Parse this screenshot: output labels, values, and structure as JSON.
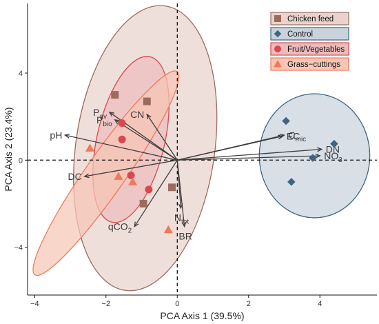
{
  "chart_data": {
    "type": "scatter",
    "title": "",
    "xlabel": "PCA Axis 1 (39.5%)",
    "ylabel": "PCA Axis 2 (23.4%)",
    "xlim": [
      -4.2,
      5.6
    ],
    "ylim": [
      -6.2,
      7.2
    ],
    "x_ticks": [
      -4,
      -2,
      0,
      2,
      4
    ],
    "y_ticks": [
      -4,
      0,
      4
    ],
    "grid": false,
    "legend_position": "top-right",
    "series": [
      {
        "name": "Chicken feed",
        "marker": "square",
        "color": "#9c6b5d",
        "ellipse_fill": "#e9d3cc",
        "points": [
          [
            -1.75,
            3.0
          ],
          [
            -0.85,
            2.7
          ],
          [
            -0.15,
            -1.25
          ],
          [
            -0.95,
            -2.0
          ]
        ]
      },
      {
        "name": "Control",
        "marker": "diamond",
        "color": "#3f6482",
        "ellipse_fill": "#c9d2dd",
        "points": [
          [
            3.05,
            1.8
          ],
          [
            4.4,
            0.75
          ],
          [
            3.8,
            0.1
          ],
          [
            3.2,
            -1.0
          ]
        ]
      },
      {
        "name": "Fruit/Vegetables",
        "marker": "circle",
        "color": "#d9474f",
        "ellipse_fill": "#ecbcbc",
        "points": [
          [
            -1.55,
            1.7
          ],
          [
            -1.55,
            0.95
          ],
          [
            -1.3,
            -0.7
          ],
          [
            -0.8,
            -1.35
          ]
        ]
      },
      {
        "name": "Grass−cuttings",
        "marker": "triangle",
        "color": "#ef7a58",
        "ellipse_fill": "#f7c6b6",
        "points": [
          [
            -2.45,
            0.55
          ],
          [
            -1.65,
            -0.75
          ],
          [
            -1.25,
            -1.0
          ],
          [
            -0.25,
            -3.2
          ]
        ]
      }
    ],
    "ellipses": [
      {
        "group": "Chicken feed",
        "cx": -0.9,
        "cy": 0.55,
        "rx": 1.95,
        "ry": 6.6,
        "angle_deg": 8
      },
      {
        "group": "Control",
        "cx": 3.85,
        "cy": 0.2,
        "rx": 1.55,
        "ry": 2.85,
        "angle_deg": 0
      },
      {
        "group": "Fruit/Vegetables",
        "cx": -1.3,
        "cy": 0.95,
        "rx": 0.95,
        "ry": 3.9,
        "angle_deg": 13
      },
      {
        "group": "Grass−cuttings",
        "cx": -2.0,
        "cy": -0.6,
        "rx": 0.55,
        "ry": 5.7,
        "angle_deg": 35
      }
    ],
    "vectors": [
      {
        "label": "pH",
        "x": -3.15,
        "y": 1.15
      },
      {
        "label": "DC",
        "x": -2.6,
        "y": -0.75
      },
      {
        "label": "P",
        "sub": "av",
        "x": -1.9,
        "y": 2.2
      },
      {
        "label": "P",
        "sub": "bio",
        "x": -1.75,
        "y": 1.85
      },
      {
        "label": "CN",
        "x": -0.85,
        "y": 2.1
      },
      {
        "label": "qCO",
        "sub": "2",
        "x": -1.2,
        "y": -3.05
      },
      {
        "label": "N",
        "sub": "tot",
        "x": 0.1,
        "y": -2.2
      },
      {
        "label": "BR",
        "x": 0.2,
        "y": -3.05
      },
      {
        "label": "C",
        "sub": "mic",
        "x": 3.0,
        "y": 1.15
      },
      {
        "label": "EC",
        "x": 2.95,
        "y": 1.1
      },
      {
        "label": "DN",
        "x": 4.05,
        "y": 0.5
      },
      {
        "label": "NO",
        "sub": "3",
        "x": 4.0,
        "y": 0.2
      }
    ]
  }
}
